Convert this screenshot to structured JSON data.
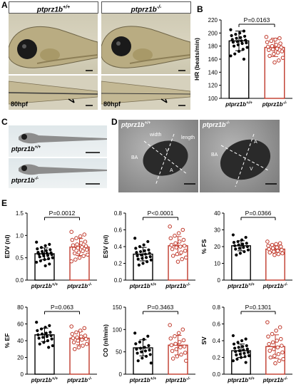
{
  "panels": {
    "A": {
      "letter": "A",
      "header_wt": "ptprz1b",
      "header_wt_sup": "+/+",
      "header_ko": "ptprz1b",
      "header_ko_sup": "-/-",
      "stage_wt": "80hpf",
      "stage_ko": "80hpf"
    },
    "B": {
      "letter": "B"
    },
    "C": {
      "letter": "C",
      "label_wt": "ptprz1b",
      "label_wt_sup": "+/+",
      "label_ko": "ptprz1b",
      "label_ko_sup": "-/-"
    },
    "D": {
      "letter": "D",
      "label_wt": "ptprz1b",
      "label_wt_sup": "+/+",
      "label_ko": "ptprz1b",
      "label_ko_sup": "-/-",
      "width_label": "width",
      "length_label": "length",
      "ba_label_wt": "BA",
      "v_label_wt": "V",
      "a_label_wt": "A",
      "ba_label_ko": "BA",
      "v_label_ko": "V",
      "a_label_ko": "A"
    },
    "E": {
      "letter": "E"
    }
  },
  "chart_data": [
    {
      "type": "bar",
      "panel": "B",
      "ylabel": "HR (beats/min)",
      "ylim": [
        100,
        220
      ],
      "yticks": [
        100,
        120,
        140,
        160,
        180,
        200,
        220
      ],
      "categories": [
        "ptprz1b",
        "ptprz1b"
      ],
      "category_sups": [
        "+/+",
        "-/-"
      ],
      "values": [
        188,
        178
      ],
      "errors": [
        15,
        14
      ],
      "colors": [
        "#000000",
        "#c0392b"
      ],
      "pvalue": "P=0.0163",
      "points": [
        [
          205,
          203,
          200,
          198,
          196,
          195,
          193,
          192,
          190,
          189,
          188,
          187,
          186,
          185,
          184,
          182,
          180,
          178,
          175,
          172,
          168,
          165,
          160
        ],
        [
          194,
          192,
          190,
          188,
          186,
          184,
          182,
          180,
          179,
          178,
          176,
          175,
          174,
          172,
          170,
          168,
          165,
          162,
          158,
          155
        ]
      ]
    },
    {
      "type": "bar",
      "panel": "E",
      "ylabel": "EDV (nl)",
      "ylim": [
        0,
        1.5
      ],
      "yticks": [
        0,
        0.5,
        1.0,
        1.5
      ],
      "ytick_labels": [
        "0.0",
        "0.5",
        "1.0",
        "1.5"
      ],
      "categories": [
        "ptprz1b",
        "ptprz1b"
      ],
      "category_sups": [
        "+/+",
        "-/-"
      ],
      "values": [
        0.59,
        0.74
      ],
      "errors": [
        0.13,
        0.19
      ],
      "colors": [
        "#000000",
        "#c0392b"
      ],
      "pvalue": "P=0.0012",
      "points": [
        [
          0.85,
          0.8,
          0.77,
          0.73,
          0.7,
          0.68,
          0.66,
          0.64,
          0.62,
          0.61,
          0.6,
          0.59,
          0.58,
          0.57,
          0.55,
          0.54,
          0.52,
          0.5,
          0.48,
          0.46,
          0.43,
          0.4,
          0.36,
          0.32
        ],
        [
          1.08,
          1.02,
          0.98,
          0.94,
          0.9,
          0.86,
          0.83,
          0.8,
          0.78,
          0.76,
          0.74,
          0.72,
          0.7,
          0.68,
          0.65,
          0.62,
          0.6,
          0.57,
          0.54,
          0.5,
          0.46,
          0.42
        ]
      ]
    },
    {
      "type": "bar",
      "panel": "E",
      "ylabel": "ESV (nl)",
      "ylim": [
        0,
        0.8
      ],
      "yticks": [
        0,
        0.2,
        0.4,
        0.6,
        0.8
      ],
      "ytick_labels": [
        "0.0",
        "0.2",
        "0.4",
        "0.6",
        "0.8"
      ],
      "categories": [
        "ptprz1b",
        "ptprz1b"
      ],
      "category_sups": [
        "+/+",
        "-/-"
      ],
      "values": [
        0.31,
        0.41
      ],
      "errors": [
        0.08,
        0.11
      ],
      "colors": [
        "#000000",
        "#c0392b"
      ],
      "pvalue": "P<0.0001",
      "points": [
        [
          0.5,
          0.46,
          0.42,
          0.4,
          0.38,
          0.36,
          0.35,
          0.34,
          0.33,
          0.32,
          0.31,
          0.3,
          0.29,
          0.28,
          0.27,
          0.26,
          0.25,
          0.24,
          0.22,
          0.2,
          0.18
        ],
        [
          0.64,
          0.6,
          0.56,
          0.53,
          0.5,
          0.48,
          0.46,
          0.44,
          0.42,
          0.41,
          0.4,
          0.39,
          0.37,
          0.35,
          0.33,
          0.31,
          0.29,
          0.27,
          0.25,
          0.22
        ]
      ]
    },
    {
      "type": "bar",
      "panel": "E",
      "ylabel": "% FS",
      "ylim": [
        0,
        40
      ],
      "yticks": [
        0,
        10,
        20,
        30,
        40
      ],
      "categories": [
        "ptprz1b",
        "ptprz1b"
      ],
      "category_sups": [
        "+/+",
        "-/-"
      ],
      "values": [
        20.5,
        18.5
      ],
      "errors": [
        3,
        2
      ],
      "colors": [
        "#000000",
        "#c0392b"
      ],
      "pvalue": "P=0.0366",
      "points": [
        [
          27,
          25.5,
          24,
          23,
          22.5,
          22,
          21.5,
          21,
          20.5,
          20,
          19.5,
          19,
          18.5,
          18,
          17,
          16,
          15
        ],
        [
          23,
          22,
          21.5,
          21,
          20.5,
          20,
          19.5,
          19,
          18.5,
          18,
          17.5,
          17,
          16.5,
          16,
          15.5,
          15
        ]
      ]
    },
    {
      "type": "bar",
      "panel": "E",
      "ylabel": "% EF",
      "ylim": [
        0,
        80
      ],
      "yticks": [
        0,
        20,
        40,
        60,
        80
      ],
      "categories": [
        "ptprz1b",
        "ptprz1b"
      ],
      "category_sups": [
        "+/+",
        "-/-"
      ],
      "values": [
        47,
        43
      ],
      "errors": [
        8,
        8
      ],
      "colors": [
        "#000000",
        "#c0392b"
      ],
      "pvalue": "P=0.063",
      "points": [
        [
          62,
          58,
          56,
          54,
          52,
          50,
          49,
          48,
          47,
          46,
          45,
          44,
          43,
          42,
          40,
          38,
          36,
          34,
          32
        ],
        [
          57,
          55,
          52,
          50,
          48,
          46,
          45,
          44,
          43,
          42,
          41,
          40,
          38,
          36,
          34,
          32,
          30
        ]
      ]
    },
    {
      "type": "bar",
      "panel": "E",
      "ylabel": "CO (nl/min)",
      "ylim": [
        0,
        150
      ],
      "yticks": [
        0,
        50,
        100,
        150
      ],
      "categories": [
        "ptprz1b",
        "ptprz1b"
      ],
      "category_sups": [
        "+/+",
        "-/-"
      ],
      "values": [
        59,
        65
      ],
      "errors": [
        18,
        22
      ],
      "colors": [
        "#000000",
        "#c0392b"
      ],
      "pvalue": "P=0.3463",
      "points": [
        [
          92,
          85,
          78,
          72,
          68,
          64,
          60,
          58,
          56,
          54,
          52,
          50,
          47,
          44,
          40,
          36,
          30,
          25
        ],
        [
          110,
          100,
          92,
          85,
          80,
          76,
          72,
          68,
          65,
          62,
          60,
          56,
          52,
          48,
          44,
          40,
          35,
          30
        ]
      ]
    },
    {
      "type": "bar",
      "panel": "E",
      "ylabel": "SV",
      "ylim": [
        0,
        0.8
      ],
      "yticks": [
        0,
        0.2,
        0.4,
        0.6,
        0.8
      ],
      "ytick_labels": [
        "0.0",
        "0.2",
        "0.4",
        "0.6",
        "0.8"
      ],
      "categories": [
        "ptprz1b",
        "ptprz1b"
      ],
      "category_sups": [
        "+/+",
        "-/-"
      ],
      "values": [
        0.28,
        0.33
      ],
      "errors": [
        0.08,
        0.14
      ],
      "colors": [
        "#000000",
        "#c0392b"
      ],
      "pvalue": "P=0.1301",
      "points": [
        [
          0.46,
          0.42,
          0.4,
          0.38,
          0.36,
          0.34,
          0.33,
          0.32,
          0.31,
          0.3,
          0.29,
          0.28,
          0.27,
          0.26,
          0.25,
          0.24,
          0.23,
          0.22,
          0.21,
          0.2,
          0.18,
          0.16,
          0.14
        ],
        [
          0.62,
          0.56,
          0.52,
          0.48,
          0.45,
          0.42,
          0.4,
          0.38,
          0.36,
          0.34,
          0.32,
          0.3,
          0.28,
          0.26,
          0.24,
          0.22,
          0.2,
          0.18,
          0.16,
          0.13
        ]
      ]
    }
  ]
}
